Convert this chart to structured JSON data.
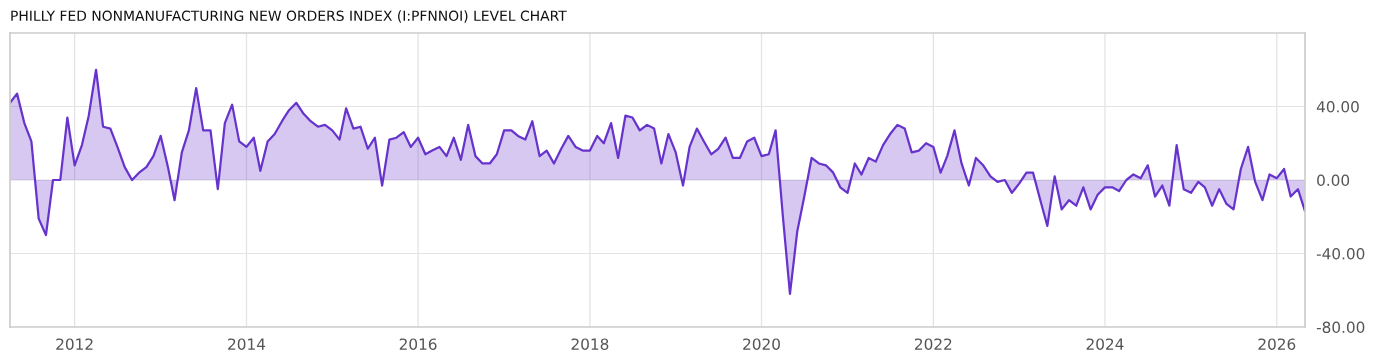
{
  "chart_data": {
    "type": "area",
    "title": "PHILLY FED NONMANUFACTURING NEW ORDERS INDEX (I:PFNNOI) LEVEL CHART",
    "x": [
      "2011-04",
      "2011-05",
      "2011-06",
      "2011-07",
      "2011-08",
      "2011-09",
      "2011-10",
      "2011-11",
      "2011-12",
      "2012-01",
      "2012-02",
      "2012-03",
      "2012-04",
      "2012-05",
      "2012-06",
      "2012-07",
      "2012-08",
      "2012-09",
      "2012-10",
      "2012-11",
      "2012-12",
      "2013-01",
      "2013-02",
      "2013-03",
      "2013-04",
      "2013-05",
      "2013-06",
      "2013-07",
      "2013-08",
      "2013-09",
      "2013-10",
      "2013-11",
      "2013-12",
      "2014-01",
      "2014-02",
      "2014-03",
      "2014-04",
      "2014-05",
      "2014-06",
      "2014-07",
      "2014-08",
      "2014-09",
      "2014-10",
      "2014-11",
      "2014-12",
      "2015-01",
      "2015-02",
      "2015-03",
      "2015-04",
      "2015-05",
      "2015-06",
      "2015-07",
      "2015-08",
      "2015-09",
      "2015-10",
      "2015-11",
      "2015-12",
      "2016-01",
      "2016-02",
      "2016-03",
      "2016-04",
      "2016-05",
      "2016-06",
      "2016-07",
      "2016-08",
      "2016-09",
      "2016-10",
      "2016-11",
      "2016-12",
      "2017-01",
      "2017-02",
      "2017-03",
      "2017-04",
      "2017-05",
      "2017-06",
      "2017-07",
      "2017-08",
      "2017-09",
      "2017-10",
      "2017-11",
      "2017-12",
      "2018-01",
      "2018-02",
      "2018-03",
      "2018-04",
      "2018-05",
      "2018-06",
      "2018-07",
      "2018-08",
      "2018-09",
      "2018-10",
      "2018-11",
      "2018-12",
      "2019-01",
      "2019-02",
      "2019-03",
      "2019-04",
      "2019-05",
      "2019-06",
      "2019-07",
      "2019-08",
      "2019-09",
      "2019-10",
      "2019-11",
      "2019-12",
      "2020-01",
      "2020-02",
      "2020-03",
      "2020-04",
      "2020-05",
      "2020-06",
      "2020-07",
      "2020-08",
      "2020-09",
      "2020-10",
      "2020-11",
      "2020-12",
      "2021-01",
      "2021-02",
      "2021-03",
      "2021-04",
      "2021-05",
      "2021-06",
      "2021-07",
      "2021-08",
      "2021-09",
      "2021-10",
      "2021-11",
      "2021-12",
      "2022-01",
      "2022-02",
      "2022-03",
      "2022-04",
      "2022-05",
      "2022-06",
      "2022-07",
      "2022-08",
      "2022-09",
      "2022-10",
      "2022-11",
      "2022-12",
      "2023-01",
      "2023-02",
      "2023-03",
      "2023-04",
      "2023-05",
      "2023-06",
      "2023-07",
      "2023-08",
      "2023-09",
      "2023-10",
      "2023-11",
      "2023-12",
      "2024-01",
      "2024-02",
      "2024-03",
      "2024-04",
      "2024-05",
      "2024-06",
      "2024-07",
      "2024-08",
      "2024-09",
      "2024-10",
      "2024-11",
      "2024-12",
      "2025-01",
      "2025-02",
      "2025-03",
      "2025-04",
      "2025-05",
      "2025-06",
      "2025-07",
      "2025-08",
      "2025-09",
      "2025-10",
      "2025-11",
      "2025-12",
      "2026-01",
      "2026-02",
      "2026-03",
      "2026-04",
      "2026-05"
    ],
    "series": [
      {
        "color": "#6633cc",
        "values": [
          42,
          47,
          31,
          21,
          -21,
          -30,
          0,
          0,
          34,
          8,
          19,
          35,
          60,
          29,
          28,
          18,
          7,
          0,
          4,
          7,
          13,
          24,
          7,
          -11,
          15,
          27,
          50,
          27,
          27,
          -5,
          31,
          41,
          21,
          18,
          23,
          5,
          21,
          25,
          32,
          38,
          42,
          36,
          32,
          29,
          30,
          27,
          22,
          39,
          28,
          29,
          17,
          23,
          -3,
          22,
          23,
          26,
          18,
          23,
          14,
          16,
          18,
          13,
          23,
          11,
          30,
          13,
          9,
          9,
          14,
          27,
          27,
          24,
          22,
          32,
          13,
          16,
          9,
          17,
          24,
          18,
          16,
          16,
          24,
          20,
          31,
          12,
          35,
          34,
          27,
          30,
          28,
          9,
          25,
          15,
          -3,
          18,
          28,
          21,
          14,
          17,
          23,
          12,
          12,
          21,
          23,
          13,
          14,
          27,
          -20,
          -62,
          -28,
          -9,
          12,
          9,
          8,
          4,
          -4,
          -7,
          9,
          3,
          12,
          10,
          19,
          25,
          30,
          28,
          15,
          16,
          20,
          18,
          4,
          13,
          27,
          9,
          -3,
          12,
          8,
          2,
          -1,
          0,
          -7,
          -2,
          4,
          4,
          -11,
          -25,
          2,
          -16,
          -11,
          -14,
          -4,
          -16,
          -8,
          -4,
          -4,
          -6,
          0,
          3,
          1,
          8,
          -9,
          -3,
          -14,
          19,
          -5,
          -7,
          -1,
          -4,
          -14,
          -5,
          -13,
          -16,
          6,
          18,
          -1,
          -11,
          3,
          1,
          6,
          -9,
          -5,
          -17
        ]
      }
    ],
    "xlim": [
      "2011-04",
      "2026-05"
    ],
    "xticks": [
      "2012",
      "2014",
      "2016",
      "2018",
      "2020",
      "2022",
      "2024",
      "2026"
    ],
    "ylim": [
      -80,
      80
    ],
    "yticks": [
      {
        "value": -80,
        "label": "-80.00"
      },
      {
        "value": -40,
        "label": "-40.00"
      },
      {
        "value": 0,
        "label": "0.00"
      },
      {
        "value": 40,
        "label": "40.00"
      }
    ],
    "grid": true
  }
}
